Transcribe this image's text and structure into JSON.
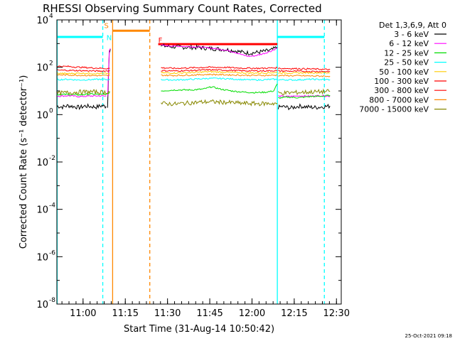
{
  "chart_data": {
    "type": "line",
    "title": "RHESSI Observing Summary Count Rates, Corrected",
    "xlabel": "Start Time (31-Aug-14 10:50:42)",
    "ylabel": "Corrected Count Rate (s⁻¹ detector⁻¹)",
    "y_scale": "log",
    "x_unit": "minutes after 10:50:42",
    "xlim": [
      0,
      101
    ],
    "ylim": [
      1e-08,
      10000
    ],
    "x_ticks": [
      {
        "value": 9.3,
        "label": "11:00"
      },
      {
        "value": 24.3,
        "label": "11:15"
      },
      {
        "value": 39.3,
        "label": "11:30"
      },
      {
        "value": 54.3,
        "label": "11:45"
      },
      {
        "value": 69.3,
        "label": "12:00"
      },
      {
        "value": 84.3,
        "label": "12:15"
      },
      {
        "value": 99.3,
        "label": "12:30"
      }
    ],
    "y_ticks": [
      {
        "value": 10000,
        "label": "10",
        "exp": "4"
      },
      {
        "value": 100,
        "label": "10",
        "exp": "2"
      },
      {
        "value": 1,
        "label": "10",
        "exp": "0"
      },
      {
        "value": 0.01,
        "label": "10",
        "exp": "-2"
      },
      {
        "value": 0.0001,
        "label": "10",
        "exp": "-4"
      },
      {
        "value": 1e-06,
        "label": "10",
        "exp": "-6"
      },
      {
        "value": 1e-08,
        "label": "10",
        "exp": "-8"
      }
    ],
    "legend_header": "Det 1,3,6,9, Att 0",
    "legend_position": "outside-right",
    "grid": false,
    "timestamp": "25-Oct-2021 09:18",
    "series": [
      {
        "name": "3 - 6 keV",
        "color": "#000000",
        "segments": [
          {
            "x": [
              0,
              2,
              4,
              6,
              8,
              10,
              12,
              14,
              16,
              17.5
            ],
            "y": [
              2.3,
              2.1,
              2.4,
              2.2,
              2.0,
              2.3,
              2.2,
              2.1,
              2.4,
              2.2
            ]
          },
          {
            "x": [
              18,
              18.6,
              19
            ],
            "y": [
              2.2,
              500,
              600
            ]
          },
          {
            "x": [
              37,
              40,
              45,
              50,
              55,
              60,
              63,
              66,
              68,
              70,
              72,
              74,
              76,
              78.3
            ],
            "y": [
              800,
              750,
              700,
              680,
              620,
              560,
              500,
              430,
              400,
              410,
              440,
              480,
              520,
              700
            ]
          },
          {
            "x": [
              78.6,
              80,
              83,
              86,
              89,
              92,
              95,
              97
            ],
            "y": [
              2.0,
              2.2,
              1.9,
              2.3,
              2.1,
              2.0,
              2.2,
              2.3
            ]
          }
        ]
      },
      {
        "name": "6 - 12 keV",
        "color": "#ff00ff",
        "segments": [
          {
            "x": [
              0,
              4,
              8,
              12,
              16,
              17.5
            ],
            "y": [
              6,
              6.3,
              5.8,
              6.1,
              6.2,
              6
            ]
          },
          {
            "x": [
              18,
              18.6,
              19
            ],
            "y": [
              6,
              520,
              620
            ]
          },
          {
            "x": [
              37,
              40,
              45,
              50,
              55,
              60,
              63,
              66,
              68,
              70,
              72,
              74,
              76,
              78.3
            ],
            "y": [
              850,
              800,
              760,
              720,
              640,
              530,
              440,
              330,
              290,
              300,
              340,
              400,
              480,
              650
            ]
          },
          {
            "x": [
              78.6,
              82,
              86,
              90,
              94,
              97
            ],
            "y": [
              6,
              5.8,
              6.2,
              6,
              6.3,
              6
            ]
          }
        ]
      },
      {
        "name": "12 - 25 keV",
        "color": "#00dd00",
        "segments": [
          {
            "x": [
              0,
              4,
              8,
              12,
              16,
              18,
              18.8
            ],
            "y": [
              7,
              7.2,
              6.8,
              7.4,
              7,
              7.5,
              9
            ]
          },
          {
            "x": [
              37,
              42,
              48,
              52,
              55,
              58,
              62,
              66,
              70,
              74,
              77,
              78.3
            ],
            "y": [
              10,
              11,
              11,
              12,
              15,
              12,
              10,
              9,
              8.5,
              8.8,
              10,
              20
            ]
          },
          {
            "x": [
              78.6,
              82,
              86,
              90,
              94,
              97
            ],
            "y": [
              5,
              5.5,
              5.2,
              5.8,
              6,
              6.5
            ]
          }
        ]
      },
      {
        "name": "25 - 50 keV",
        "color": "#00ffff",
        "segments": [
          {
            "x": [
              0,
              4,
              8,
              12,
              16,
              18,
              18.8
            ],
            "y": [
              30,
              31,
              29,
              30,
              31,
              30,
              32
            ]
          },
          {
            "x": [
              37,
              42,
              48,
              54,
              60,
              66,
              72,
              77,
              78.3
            ],
            "y": [
              30,
              29,
              31,
              34,
              33,
              30,
              29,
              31,
              30
            ]
          },
          {
            "x": [
              78.6,
              84,
              90,
              97
            ],
            "y": [
              30,
              29,
              31,
              30
            ]
          }
        ]
      },
      {
        "name": "50 - 100 keV",
        "color": "#ffcc00",
        "segments": [
          {
            "x": [
              0,
              4,
              8,
              12,
              16,
              18,
              18.8
            ],
            "y": [
              55,
              54,
              56,
              55,
              54,
              55,
              56
            ]
          },
          {
            "x": [
              37,
              42,
              48,
              54,
              60,
              66,
              72,
              78.3
            ],
            "y": [
              58,
              57,
              60,
              65,
              62,
              58,
              57,
              60
            ]
          },
          {
            "x": [
              78.6,
              84,
              90,
              97
            ],
            "y": [
              58,
              57,
              59,
              58
            ]
          }
        ]
      },
      {
        "name": "100 - 300 keV",
        "color": "#ff0000",
        "segments": [
          {
            "x": [
              0,
              4,
              8,
              12,
              16,
              18,
              18.8
            ],
            "y": [
              110,
              108,
              100,
              95,
              90,
              88,
              90
            ]
          },
          {
            "x": [
              37,
              42,
              48,
              54,
              60,
              66,
              72,
              78.3
            ],
            "y": [
              95,
              90,
              95,
              100,
              98,
              92,
              90,
              95
            ]
          },
          {
            "x": [
              78.6,
              84,
              90,
              97
            ],
            "y": [
              90,
              88,
              85,
              80
            ]
          }
        ]
      },
      {
        "name": "300 - 800 keV",
        "color": "#ff0000",
        "segments": [
          {
            "x": [
              0,
              4,
              8,
              12,
              16,
              18,
              18.8
            ],
            "y": [
              75,
              74,
              72,
              70,
              69,
              70,
              71
            ]
          },
          {
            "x": [
              37,
              42,
              48,
              54,
              60,
              66,
              72,
              78.3
            ],
            "y": [
              72,
              70,
              73,
              78,
              75,
              71,
              70,
              72
            ]
          },
          {
            "x": [
              78.6,
              84,
              90,
              97
            ],
            "y": [
              70,
              68,
              67,
              66
            ]
          }
        ]
      },
      {
        "name": "800 - 7000 keV",
        "color": "#ff8800",
        "segments": [
          {
            "x": [
              0,
              4,
              8,
              12,
              16,
              18,
              18.8
            ],
            "y": [
              48,
              47,
              46,
              45,
              44,
              45,
              46
            ]
          },
          {
            "x": [
              37,
              42,
              48,
              54,
              60,
              66,
              72,
              78.3
            ],
            "y": [
              46,
              45,
              47,
              50,
              48,
              46,
              45,
              46
            ]
          },
          {
            "x": [
              78.6,
              84,
              90,
              97
            ],
            "y": [
              45,
              44,
              43,
              42
            ]
          }
        ]
      },
      {
        "name": "7000 - 15000 keV",
        "color": "#888800",
        "segments": [
          {
            "x": [
              0,
              4,
              8,
              12,
              16,
              18,
              18.8
            ],
            "y": [
              8,
              8.5,
              9,
              9.2,
              8.8,
              9,
              9.5
            ]
          },
          {
            "x": [
              37,
              42,
              48,
              54,
              60,
              66,
              72,
              78.3
            ],
            "y": [
              3,
              2.8,
              3.2,
              3.5,
              3.3,
              3,
              2.9,
              3
            ]
          },
          {
            "x": [
              78.6,
              84,
              90,
              97
            ],
            "y": [
              8,
              8.5,
              9,
              9.5
            ]
          }
        ]
      }
    ],
    "overlays": [
      {
        "kind": "hline",
        "color": "#00ffff",
        "y": 1900,
        "x": [
          0,
          16.3
        ]
      },
      {
        "kind": "hline",
        "color": "#00ffff",
        "y": 1900,
        "x": [
          78.3,
          95
        ]
      },
      {
        "kind": "vline",
        "color": "#00ffff",
        "style": "solid",
        "x": 78.3
      },
      {
        "kind": "vline",
        "color": "#00ffff",
        "style": "solid",
        "x": 0.1
      },
      {
        "kind": "vline",
        "color": "#00ffff",
        "style": "dashed",
        "x": 16.3
      },
      {
        "kind": "vline",
        "color": "#00ffff",
        "style": "dashed",
        "x": 95
      },
      {
        "kind": "hline",
        "color": "#ff8800",
        "y": 3500,
        "x": [
          19.8,
          33
        ]
      },
      {
        "kind": "vline",
        "color": "#ff8800",
        "style": "solid",
        "x": 19.8
      },
      {
        "kind": "vline",
        "color": "#ff8800",
        "style": "dashed",
        "x": 33
      },
      {
        "kind": "hline",
        "color": "#ff0000",
        "y": 950,
        "x": 36,
        "x_end": 78.3
      },
      {
        "kind": "label",
        "text": "S",
        "color": "#ff8800",
        "x": 16.8,
        "y": 4500
      },
      {
        "kind": "label",
        "text": "N",
        "color": "#00ffff",
        "x": 17.6,
        "y": 1400
      },
      {
        "kind": "label",
        "text": "F",
        "color": "#ff0000",
        "x": 36,
        "y": 1100
      }
    ]
  }
}
